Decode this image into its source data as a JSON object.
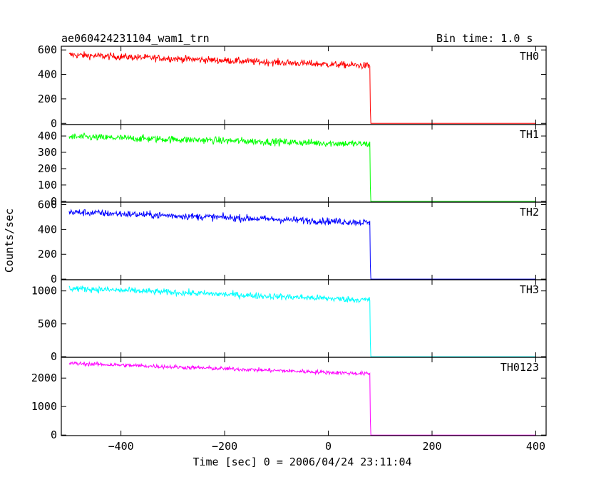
{
  "header": {
    "title": "ae060424231104_wam1_trn",
    "bin_time": "Bin time: 1.0 s"
  },
  "chart_data": {
    "type": "line",
    "xlabel": "Time [sec] 0 = 2006/04/24 23:11:04",
    "ylabel": "Counts/sec",
    "xlim": [
      -515,
      420
    ],
    "x_ticks": [
      -400,
      -200,
      0,
      200,
      400
    ],
    "x_tick_labels": [
      "−400",
      "−200",
      "0",
      "200",
      "400"
    ],
    "cutoff_x": 80,
    "grid": false,
    "panels": [
      {
        "name": "TH0",
        "color": "#ff0000",
        "ylim": [
          -10,
          630
        ],
        "y_ticks": [
          0,
          200,
          400,
          600
        ],
        "y_tick_labels": [
          "0",
          "200",
          "400",
          "600"
        ],
        "start_level": 560,
        "end_level": 470,
        "noise": 22,
        "after_level": 0
      },
      {
        "name": "TH1",
        "color": "#00ff00",
        "ylim": [
          -5,
          470
        ],
        "y_ticks": [
          0,
          100,
          200,
          300,
          400
        ],
        "y_tick_labels": [
          "0",
          "100",
          "200",
          "300",
          "400"
        ],
        "start_level": 395,
        "end_level": 350,
        "noise": 17,
        "after_level": 0
      },
      {
        "name": "TH2",
        "color": "#0000ff",
        "ylim": [
          -5,
          620
        ],
        "y_ticks": [
          0,
          200,
          400,
          600
        ],
        "y_tick_labels": [
          "0",
          "200",
          "400",
          "600"
        ],
        "start_level": 540,
        "end_level": 455,
        "noise": 22,
        "after_level": 0
      },
      {
        "name": "TH3",
        "color": "#00ffff",
        "ylim": [
          -10,
          1170
        ],
        "y_ticks": [
          0,
          500,
          1000
        ],
        "y_tick_labels": [
          "0",
          "500",
          "1000"
        ],
        "start_level": 1040,
        "end_level": 860,
        "noise": 38,
        "after_level": 0
      },
      {
        "name": "TH0123",
        "color": "#ff00ff",
        "ylim": [
          -20,
          2730
        ],
        "y_ticks": [
          0,
          1000,
          2000
        ],
        "y_tick_labels": [
          "0",
          "1000",
          "2000"
        ],
        "start_level": 2520,
        "end_level": 2150,
        "noise": 55,
        "after_level": 0
      }
    ]
  }
}
